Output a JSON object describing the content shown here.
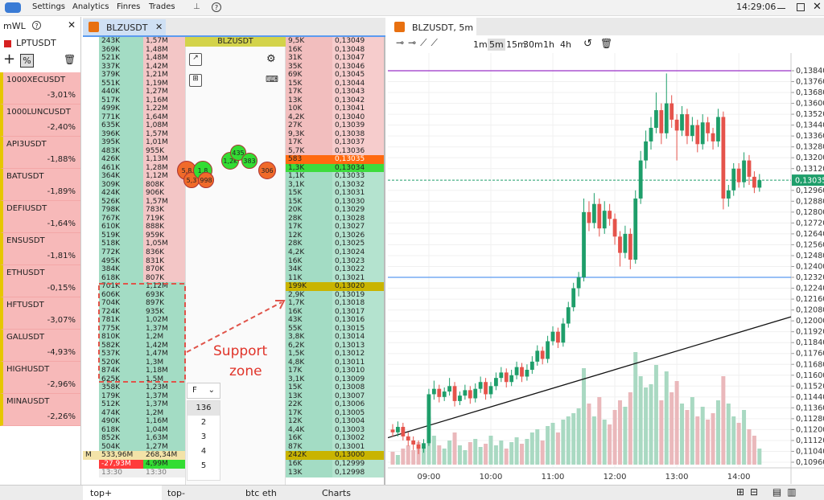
{
  "menu": {
    "items": [
      "Settings",
      "Analytics",
      "Finres",
      "Trades"
    ],
    "clock": "14:29:06"
  },
  "watchlist": {
    "title": "mWL",
    "selected": "LPTUSDT",
    "items": [
      {
        "name": "1000XECUSDT",
        "change": "-3,01%"
      },
      {
        "name": "1000LUNCUSDT",
        "change": "-2,40%"
      },
      {
        "name": "API3USDT",
        "change": "-1,88%"
      },
      {
        "name": "BATUSDT",
        "change": "-1,89%"
      },
      {
        "name": "DEFIUSDT",
        "change": "-1,64%"
      },
      {
        "name": "ENSUSDT",
        "change": "-1,81%"
      },
      {
        "name": "ETHUSDT",
        "change": "-0,15%"
      },
      {
        "name": "HFTUSDT",
        "change": "-3,07%"
      },
      {
        "name": "GALUSDT",
        "change": "-4,93%"
      },
      {
        "name": "HIGHUSDT",
        "change": "-2,96%"
      },
      {
        "name": "MINAUSDT",
        "change": "-2,26%"
      }
    ]
  },
  "orderbook": {
    "tab": "BLZUSDT",
    "title": "BLZUSDT",
    "rows_left": [
      [
        "243K",
        "1,57M"
      ],
      [
        "369K",
        "1,48M"
      ],
      [
        "521K",
        "1,48M"
      ],
      [
        "337K",
        "1,42M"
      ],
      [
        "379K",
        "1,21M"
      ],
      [
        "551K",
        "1,19M"
      ],
      [
        "440K",
        "1,27M"
      ],
      [
        "517K",
        "1,16M"
      ],
      [
        "499K",
        "1,22M"
      ],
      [
        "771K",
        "1,64M"
      ],
      [
        "635K",
        "1,08M"
      ],
      [
        "396K",
        "1,57M"
      ],
      [
        "395K",
        "1,01M"
      ],
      [
        "483K",
        "955K"
      ],
      [
        "426K",
        "1,13M"
      ],
      [
        "461K",
        "1,28M"
      ],
      [
        "364K",
        "1,12M"
      ],
      [
        "309K",
        "808K"
      ],
      [
        "424K",
        "906K"
      ],
      [
        "526K",
        "1,57M"
      ],
      [
        "798K",
        "783K"
      ],
      [
        "767K",
        "719K"
      ],
      [
        "610K",
        "888K"
      ],
      [
        "519K",
        "959K"
      ],
      [
        "518K",
        "1,05M"
      ],
      [
        "772K",
        "836K"
      ],
      [
        "495K",
        "831K"
      ],
      [
        "384K",
        "870K"
      ],
      [
        "618K",
        "807K"
      ],
      [
        "701K",
        "1,12M"
      ],
      [
        "606K",
        "693K"
      ],
      [
        "704K",
        "897K"
      ],
      [
        "724K",
        "935K"
      ],
      [
        "781K",
        "1,02M"
      ],
      [
        "775K",
        "1,37M"
      ],
      [
        "810K",
        "1,2M"
      ],
      [
        "582K",
        "1,42M"
      ],
      [
        "537K",
        "1,47M"
      ],
      [
        "520K",
        "1,3M"
      ],
      [
        "874K",
        "1,18M"
      ],
      [
        "625K",
        "1,5M"
      ],
      [
        "358K",
        "1,23M"
      ],
      [
        "179K",
        "1,37M"
      ],
      [
        "512K",
        "1,37M"
      ],
      [
        "474K",
        "1,2M"
      ],
      [
        "490K",
        "1,16M"
      ],
      [
        "618K",
        "1,04M"
      ],
      [
        "852K",
        "1,63M"
      ],
      [
        "504K",
        "1,27M"
      ]
    ],
    "summary": {
      "marker": "M",
      "total": [
        "533,96M",
        "268,34M"
      ],
      "delta": [
        "-27,93M",
        "4,99M"
      ],
      "time": [
        "13:30",
        "13:30"
      ]
    },
    "rows_right": [
      [
        "9,5K",
        "0,13049"
      ],
      [
        "16K",
        "0,13048"
      ],
      [
        "31K",
        "0,13047"
      ],
      [
        "35K",
        "0,13046"
      ],
      [
        "69K",
        "0,13045"
      ],
      [
        "15K",
        "0,13044"
      ],
      [
        "17K",
        "0,13043"
      ],
      [
        "13K",
        "0,13042"
      ],
      [
        "10K",
        "0,13041"
      ],
      [
        "4,2K",
        "0,13040"
      ],
      [
        "27K",
        "0,13039"
      ],
      [
        "9,3K",
        "0,13038"
      ],
      [
        "17K",
        "0,13037"
      ],
      [
        "5,7K",
        "0,13036"
      ],
      [
        "583",
        "0,13035"
      ],
      [
        "1,3K",
        "0,13034"
      ],
      [
        "1,1K",
        "0,13033"
      ],
      [
        "3,1K",
        "0,13032"
      ],
      [
        "15K",
        "0,13031"
      ],
      [
        "15K",
        "0,13030"
      ],
      [
        "20K",
        "0,13029"
      ],
      [
        "28K",
        "0,13028"
      ],
      [
        "17K",
        "0,13027"
      ],
      [
        "12K",
        "0,13026"
      ],
      [
        "28K",
        "0,13025"
      ],
      [
        "4,2K",
        "0,13024"
      ],
      [
        "16K",
        "0,13023"
      ],
      [
        "34K",
        "0,13022"
      ],
      [
        "11K",
        "0,13021"
      ],
      [
        "199K",
        "0,13020"
      ],
      [
        "2,9K",
        "0,13019"
      ],
      [
        "1,7K",
        "0,13018"
      ],
      [
        "16K",
        "0,13017"
      ],
      [
        "43K",
        "0,13016"
      ],
      [
        "55K",
        "0,13015"
      ],
      [
        "3,8K",
        "0,13014"
      ],
      [
        "6,2K",
        "0,13013"
      ],
      [
        "1,5K",
        "0,13012"
      ],
      [
        "4,8K",
        "0,13011"
      ],
      [
        "17K",
        "0,13010"
      ],
      [
        "3,1K",
        "0,13009"
      ],
      [
        "15K",
        "0,13008"
      ],
      [
        "13K",
        "0,13007"
      ],
      [
        "22K",
        "0,13006"
      ],
      [
        "17K",
        "0,13005"
      ],
      [
        "12K",
        "0,13004"
      ],
      [
        "4,4K",
        "0,13003"
      ],
      [
        "16K",
        "0,13002"
      ],
      [
        "87K",
        "0,13001"
      ],
      [
        "242K",
        "0,13000"
      ],
      [
        "16K",
        "0,12999"
      ],
      [
        "13K",
        "0,12998"
      ]
    ],
    "bubbles": [
      {
        "label": "5,8",
        "color": "#f06a2a"
      },
      {
        "label": "5,3",
        "color": "#f06a2a"
      },
      {
        "label": "1,8",
        "color": "#33dd33"
      },
      {
        "label": "998",
        "color": "#f06a2a"
      },
      {
        "label": "1,2k",
        "color": "#33dd33"
      },
      {
        "label": "435",
        "color": "#33dd33"
      },
      {
        "label": "383",
        "color": "#33dd33"
      },
      {
        "label": "306",
        "color": "#f06a2a"
      }
    ],
    "filter": {
      "label": "F",
      "options": [
        "136",
        "2",
        "3",
        "4",
        "5"
      ]
    },
    "annotation": [
      "Support",
      "zone"
    ]
  },
  "chart": {
    "tab": "BLZUSDT, 5m",
    "timeframes": [
      "1m",
      "5m",
      "15m",
      "30m",
      "1h",
      "4h"
    ],
    "active_timeframe": 1,
    "up_color": "#1e9e6a",
    "down_color": "#e5534b",
    "volume_up_color": "#a9d9c2",
    "volume_down_color": "#eab8bb",
    "ylim": [
      0.1096,
      0.1384
    ],
    "yticks": [
      {
        "value": 0.1384,
        "label": "0,13840"
      },
      {
        "value": 0.1376,
        "label": "0,13760"
      },
      {
        "value": 0.1368,
        "label": "0,13680"
      },
      {
        "value": 0.136,
        "label": "0,13600"
      },
      {
        "value": 0.1352,
        "label": "0,13520"
      },
      {
        "value": 0.1344,
        "label": "0,13440"
      },
      {
        "value": 0.1336,
        "label": "0,13360"
      },
      {
        "value": 0.1328,
        "label": "0,13280"
      },
      {
        "value": 0.132,
        "label": "0,13200"
      },
      {
        "value": 0.1312,
        "label": "0,13120"
      },
      {
        "value": 0.1296,
        "label": "0,12960"
      },
      {
        "value": 0.1288,
        "label": "0,12880"
      },
      {
        "value": 0.128,
        "label": "0,12800"
      },
      {
        "value": 0.1272,
        "label": "0,12720"
      },
      {
        "value": 0.1264,
        "label": "0,12640"
      },
      {
        "value": 0.1256,
        "label": "0,12560"
      },
      {
        "value": 0.1248,
        "label": "0,12480"
      },
      {
        "value": 0.124,
        "label": "0,12400"
      },
      {
        "value": 0.1232,
        "label": "0,12320"
      },
      {
        "value": 0.1224,
        "label": "0,12240"
      },
      {
        "value": 0.1216,
        "label": "0,12160"
      },
      {
        "value": 0.1208,
        "label": "0,12080"
      },
      {
        "value": 0.12,
        "label": "0,12000"
      },
      {
        "value": 0.1192,
        "label": "0,11920"
      },
      {
        "value": 0.1184,
        "label": "0,11840"
      },
      {
        "value": 0.1176,
        "label": "0,11760"
      },
      {
        "value": 0.1168,
        "label": "0,11680"
      },
      {
        "value": 0.116,
        "label": "0,11600"
      },
      {
        "value": 0.1152,
        "label": "0,11520"
      },
      {
        "value": 0.1144,
        "label": "0,11440"
      },
      {
        "value": 0.1136,
        "label": "0,11360"
      },
      {
        "value": 0.1128,
        "label": "0,11280"
      },
      {
        "value": 0.112,
        "label": "0,11200"
      },
      {
        "value": 0.1112,
        "label": "0,11120"
      },
      {
        "value": 0.1104,
        "label": "0,11040"
      },
      {
        "value": 0.1096,
        "label": "0,10960"
      }
    ],
    "times": [
      "09:00",
      "10:00",
      "11:00",
      "12:00",
      "13:00",
      "14:00"
    ],
    "last_price": {
      "value": 0.13035,
      "label": "0,13035"
    },
    "levels": [
      {
        "value": 0.1384,
        "color": "#9b30c8"
      },
      {
        "value": 0.1232,
        "color": "#5b9bf0"
      }
    ],
    "trend_line": [
      0.1114,
      0.1203
    ],
    "candles": [
      [
        0.112,
        0.1124,
        0.1115,
        0.1118
      ],
      [
        0.1118,
        0.1126,
        0.1115,
        0.1122
      ],
      [
        0.1122,
        0.1125,
        0.1112,
        0.1115
      ],
      [
        0.1115,
        0.1118,
        0.1108,
        0.1112
      ],
      [
        0.1112,
        0.1115,
        0.1105,
        0.1109
      ],
      [
        0.1109,
        0.1112,
        0.1102,
        0.1106
      ],
      [
        0.1106,
        0.1113,
        0.1103,
        0.111
      ],
      [
        0.111,
        0.115,
        0.1108,
        0.1146
      ],
      [
        0.1146,
        0.1156,
        0.1142,
        0.115
      ],
      [
        0.115,
        0.1153,
        0.114,
        0.1144
      ],
      [
        0.1144,
        0.1151,
        0.1141,
        0.1148
      ],
      [
        0.1148,
        0.1158,
        0.1145,
        0.1152
      ],
      [
        0.1152,
        0.1155,
        0.1137,
        0.1141
      ],
      [
        0.1141,
        0.1148,
        0.1138,
        0.1145
      ],
      [
        0.1145,
        0.1153,
        0.1142,
        0.1149
      ],
      [
        0.1149,
        0.1152,
        0.1139,
        0.1143
      ],
      [
        0.1143,
        0.1154,
        0.114,
        0.115
      ],
      [
        0.115,
        0.1159,
        0.1147,
        0.1155
      ],
      [
        0.1155,
        0.1158,
        0.1142,
        0.1146
      ],
      [
        0.1146,
        0.1155,
        0.1143,
        0.1152
      ],
      [
        0.1152,
        0.1162,
        0.1149,
        0.1158
      ],
      [
        0.1158,
        0.1166,
        0.1155,
        0.1162
      ],
      [
        0.1162,
        0.1165,
        0.1151,
        0.1155
      ],
      [
        0.1155,
        0.1164,
        0.1152,
        0.116
      ],
      [
        0.116,
        0.117,
        0.1157,
        0.1166
      ],
      [
        0.1166,
        0.1169,
        0.1155,
        0.1159
      ],
      [
        0.1159,
        0.1168,
        0.1156,
        0.1164
      ],
      [
        0.1164,
        0.1174,
        0.1161,
        0.117
      ],
      [
        0.117,
        0.1182,
        0.1167,
        0.1178
      ],
      [
        0.1178,
        0.1181,
        0.1168,
        0.1172
      ],
      [
        0.1172,
        0.1189,
        0.1169,
        0.1185
      ],
      [
        0.1185,
        0.1196,
        0.1182,
        0.1192
      ],
      [
        0.1192,
        0.1195,
        0.118,
        0.1184
      ],
      [
        0.1184,
        0.1202,
        0.1181,
        0.1198
      ],
      [
        0.1198,
        0.1214,
        0.1195,
        0.121
      ],
      [
        0.121,
        0.1228,
        0.1207,
        0.1224
      ],
      [
        0.1224,
        0.1236,
        0.1218,
        0.1232
      ],
      [
        0.1232,
        0.129,
        0.1229,
        0.128
      ],
      [
        0.128,
        0.1288,
        0.1266,
        0.1272
      ],
      [
        0.1272,
        0.1294,
        0.1268,
        0.1286
      ],
      [
        0.1286,
        0.129,
        0.1262,
        0.1268
      ],
      [
        0.1268,
        0.1288,
        0.1264,
        0.1281
      ],
      [
        0.1281,
        0.1286,
        0.127,
        0.1275
      ],
      [
        0.1275,
        0.1279,
        0.1256,
        0.1262
      ],
      [
        0.1262,
        0.1266,
        0.124,
        0.125
      ],
      [
        0.125,
        0.127,
        0.1246,
        0.1264
      ],
      [
        0.1264,
        0.1268,
        0.1238,
        0.1245
      ],
      [
        0.1245,
        0.1296,
        0.1242,
        0.129
      ],
      [
        0.129,
        0.1325,
        0.1286,
        0.1318
      ],
      [
        0.1318,
        0.134,
        0.1312,
        0.1332
      ],
      [
        0.1332,
        0.135,
        0.1326,
        0.1342
      ],
      [
        0.1342,
        0.1368,
        0.1338,
        0.1355
      ],
      [
        0.1355,
        0.136,
        0.133,
        0.1338
      ],
      [
        0.1338,
        0.1382,
        0.1334,
        0.136
      ],
      [
        0.136,
        0.1366,
        0.1342,
        0.1348
      ],
      [
        0.1348,
        0.1352,
        0.1318,
        0.134
      ],
      [
        0.134,
        0.1358,
        0.1336,
        0.1352
      ],
      [
        0.1352,
        0.1356,
        0.133,
        0.1336
      ],
      [
        0.1336,
        0.135,
        0.1332,
        0.1344
      ],
      [
        0.1344,
        0.1348,
        0.1324,
        0.133
      ],
      [
        0.133,
        0.1352,
        0.1326,
        0.1346
      ],
      [
        0.1346,
        0.135,
        0.1332,
        0.1338
      ],
      [
        0.1338,
        0.1342,
        0.1326,
        0.1332
      ],
      [
        0.1332,
        0.1356,
        0.1328,
        0.135
      ],
      [
        0.135,
        0.1354,
        0.1282,
        0.129
      ],
      [
        0.129,
        0.13,
        0.1284,
        0.1296
      ],
      [
        0.1296,
        0.1316,
        0.1292,
        0.1312
      ],
      [
        0.1312,
        0.1316,
        0.1298,
        0.1302
      ],
      [
        0.1302,
        0.1324,
        0.1298,
        0.1318
      ],
      [
        0.1318,
        0.1322,
        0.13,
        0.1306
      ],
      [
        0.1306,
        0.131,
        0.1294,
        0.1298
      ],
      [
        0.1298,
        0.1308,
        0.1295,
        0.13035
      ]
    ],
    "volumes": [
      8,
      6,
      10,
      12,
      9,
      14,
      11,
      30,
      18,
      12,
      10,
      15,
      20,
      12,
      9,
      14,
      16,
      11,
      13,
      18,
      12,
      15,
      10,
      14,
      17,
      13,
      16,
      20,
      22,
      15,
      24,
      26,
      20,
      28,
      30,
      32,
      35,
      60,
      38,
      30,
      42,
      28,
      25,
      34,
      40,
      36,
      45,
      70,
      55,
      48,
      50,
      62,
      40,
      58,
      45,
      52,
      38,
      34,
      42,
      30,
      36,
      28,
      32,
      40,
      55,
      38,
      30,
      26,
      34,
      22,
      18,
      10
    ]
  },
  "bottom_tabs": [
    "top+",
    "top-",
    "btc eth",
    "Charts"
  ]
}
